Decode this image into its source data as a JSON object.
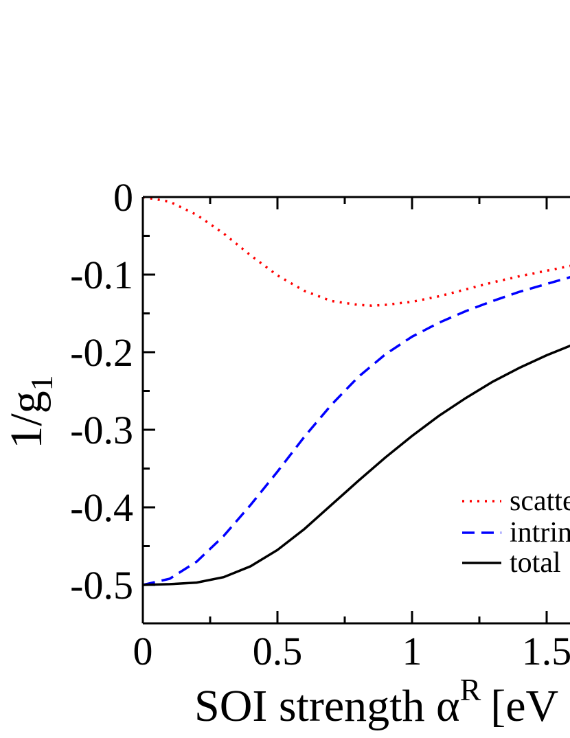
{
  "chart_data": {
    "type": "line",
    "title": "",
    "xlabel": "SOI strength α",
    "xlabel_superscript": "R",
    "xlabel_tail": "[eV",
    "ylabel": "1/g",
    "ylabel_subscript": "1",
    "xlim": [
      0,
      1.6
    ],
    "ylim": [
      -0.55,
      0
    ],
    "x_ticks": [
      0,
      0.5,
      1,
      1.5
    ],
    "x_tick_labels": [
      "0",
      "0.5",
      "1",
      "1.5"
    ],
    "y_ticks": [
      0,
      -0.1,
      -0.2,
      -0.3,
      -0.4,
      -0.5
    ],
    "y_tick_labels": [
      "0",
      "-0.1",
      "-0.2",
      "-0.3",
      "-0.4",
      "-0.5"
    ],
    "legend_position": "right",
    "series": [
      {
        "name": "scatte",
        "style": "dotted",
        "color": "#ff0000",
        "x": [
          0,
          0.1,
          0.2,
          0.3,
          0.4,
          0.5,
          0.6,
          0.7,
          0.8,
          0.85,
          0.9,
          1.0,
          1.1,
          1.2,
          1.3,
          1.4,
          1.5,
          1.6
        ],
        "y": [
          0,
          -0.006,
          -0.023,
          -0.047,
          -0.075,
          -0.101,
          -0.121,
          -0.134,
          -0.139,
          -0.14,
          -0.139,
          -0.135,
          -0.128,
          -0.119,
          -0.11,
          -0.102,
          -0.095,
          -0.088
        ]
      },
      {
        "name": "intrin",
        "style": "dashed",
        "color": "#0000ff",
        "x": [
          0,
          0.1,
          0.2,
          0.3,
          0.4,
          0.5,
          0.6,
          0.7,
          0.8,
          0.9,
          1.0,
          1.1,
          1.2,
          1.3,
          1.4,
          1.5,
          1.6
        ],
        "y": [
          -0.5,
          -0.492,
          -0.47,
          -0.437,
          -0.397,
          -0.354,
          -0.309,
          -0.268,
          -0.232,
          -0.203,
          -0.18,
          -0.162,
          -0.147,
          -0.134,
          -0.122,
          -0.112,
          -0.102
        ]
      },
      {
        "name": "total",
        "style": "solid",
        "color": "#000000",
        "x": [
          0,
          0.1,
          0.2,
          0.3,
          0.4,
          0.5,
          0.6,
          0.7,
          0.8,
          0.9,
          1.0,
          1.1,
          1.2,
          1.3,
          1.4,
          1.5,
          1.6
        ],
        "y": [
          -0.5,
          -0.499,
          -0.497,
          -0.49,
          -0.476,
          -0.455,
          -0.428,
          -0.397,
          -0.366,
          -0.336,
          -0.308,
          -0.282,
          -0.259,
          -0.238,
          -0.22,
          -0.204,
          -0.19
        ]
      }
    ]
  }
}
